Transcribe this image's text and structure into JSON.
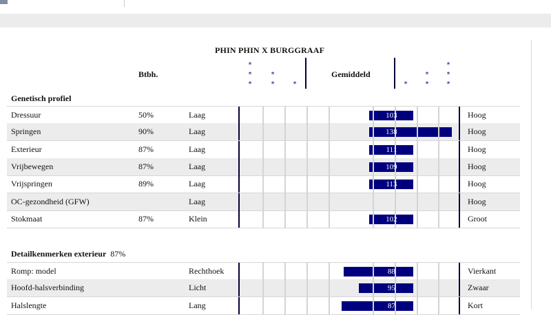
{
  "report": {
    "title": "PHIN PHIN X BURGGRAAF",
    "col_reliability": "Btbh.",
    "col_average": "Gemiddeld"
  },
  "sections": [
    {
      "title": "Genetisch profiel",
      "pct": "",
      "rows": [
        {
          "name": "Dressuur",
          "pct": "50%",
          "low": "Laag",
          "high": "Hoog",
          "value": 103
        },
        {
          "name": "Springen",
          "pct": "90%",
          "low": "Laag",
          "high": "Hoog",
          "value": 138
        },
        {
          "name": "Exterieur",
          "pct": "87%",
          "low": "Laag",
          "high": "Hoog",
          "value": 111
        },
        {
          "name": "Vrijbewegen",
          "pct": "87%",
          "low": "Laag",
          "high": "Hoog",
          "value": 109
        },
        {
          "name": "Vrijspringen",
          "pct": "89%",
          "low": "Laag",
          "high": "Hoog",
          "value": 113
        },
        {
          "name": "OC-gezondheid (GFW)",
          "pct": "",
          "low": "Laag",
          "high": "Hoog",
          "value": null
        },
        {
          "name": "Stokmaat",
          "pct": "87%",
          "low": "Klein",
          "high": "Groot",
          "value": 102
        }
      ]
    },
    {
      "title": "Detailkenmerken exterieur",
      "pct": "87%",
      "rows": [
        {
          "name": "Romp: model",
          "pct": "",
          "low": "Rechthoek",
          "high": "Vierkant",
          "value": 88
        },
        {
          "name": "Hoofd-halsverbinding",
          "pct": "",
          "low": "Licht",
          "high": "Zwaar",
          "value": 95
        },
        {
          "name": "Halslengte",
          "pct": "",
          "low": "Lang",
          "high": "Kort",
          "value": 87
        }
      ]
    }
  ],
  "colors": {
    "bar": "#00007f",
    "star": "#00007f",
    "shade": "#ececec"
  }
}
